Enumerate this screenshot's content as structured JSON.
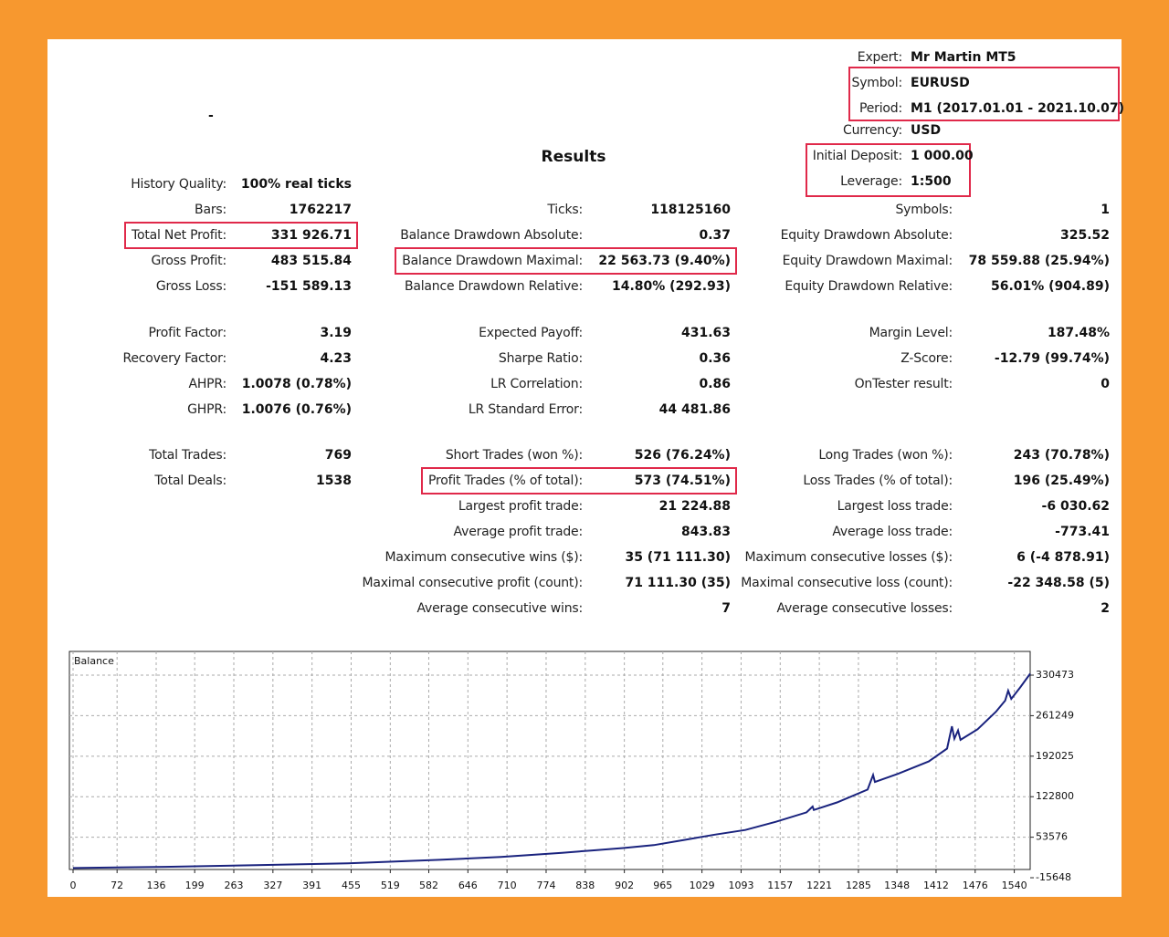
{
  "header": {
    "dash": "-",
    "rows": [
      {
        "label": "Expert:",
        "value": "Mr Martin MT5"
      },
      {
        "label": "Symbol:",
        "value": "EURUSD"
      },
      {
        "label": "Period:",
        "value": "M1 (2017.01.01 - 2021.10.07)"
      },
      {
        "label": "Currency:",
        "value": "USD"
      },
      {
        "label": "Initial Deposit:",
        "value": "1 000.00"
      },
      {
        "label": "Leverage:",
        "value": "1:500"
      }
    ]
  },
  "results": {
    "title": "Results",
    "groups": [
      [
        [
          {
            "label": "History Quality:",
            "value": "100% real ticks"
          },
          null,
          null
        ],
        [
          {
            "label": "Bars:",
            "value": "1762217"
          },
          {
            "label": "Ticks:",
            "value": "118125160"
          },
          {
            "label": "Symbols:",
            "value": "1"
          }
        ],
        [
          {
            "label": "Total Net Profit:",
            "value": "331 926.71",
            "highlight": true
          },
          {
            "label": "Balance Drawdown Absolute:",
            "value": "0.37"
          },
          {
            "label": "Equity Drawdown Absolute:",
            "value": "325.52"
          }
        ],
        [
          {
            "label": "Gross Profit:",
            "value": "483 515.84"
          },
          {
            "label": "Balance Drawdown Maximal:",
            "value": "22 563.73 (9.40%)",
            "highlight": true
          },
          {
            "label": "Equity Drawdown Maximal:",
            "value": "78 559.88 (25.94%)"
          }
        ],
        [
          {
            "label": "Gross Loss:",
            "value": "-151 589.13"
          },
          {
            "label": "Balance Drawdown Relative:",
            "value": "14.80% (292.93)"
          },
          {
            "label": "Equity Drawdown Relative:",
            "value": "56.01% (904.89)"
          }
        ]
      ],
      [
        [
          {
            "label": "Profit Factor:",
            "value": "3.19"
          },
          {
            "label": "Expected Payoff:",
            "value": "431.63"
          },
          {
            "label": "Margin Level:",
            "value": "187.48%"
          }
        ],
        [
          {
            "label": "Recovery Factor:",
            "value": "4.23"
          },
          {
            "label": "Sharpe Ratio:",
            "value": "0.36"
          },
          {
            "label": "Z-Score:",
            "value": "-12.79 (99.74%)"
          }
        ],
        [
          {
            "label": "AHPR:",
            "value": "1.0078 (0.78%)"
          },
          {
            "label": "LR Correlation:",
            "value": "0.86"
          },
          {
            "label": "OnTester result:",
            "value": "0"
          }
        ],
        [
          {
            "label": "GHPR:",
            "value": "1.0076 (0.76%)"
          },
          {
            "label": "LR Standard Error:",
            "value": "44 481.86"
          },
          null
        ]
      ],
      [
        [
          {
            "label": "Total Trades:",
            "value": "769"
          },
          {
            "label": "Short Trades (won %):",
            "value": "526 (76.24%)"
          },
          {
            "label": "Long Trades (won %):",
            "value": "243 (70.78%)"
          }
        ],
        [
          {
            "label": "Total Deals:",
            "value": "1538"
          },
          {
            "label": "Profit Trades (% of total):",
            "value": "573 (74.51%)",
            "highlight": true
          },
          {
            "label": "Loss Trades (% of total):",
            "value": "196 (25.49%)"
          }
        ],
        [
          null,
          {
            "label": "Largest profit trade:",
            "value": "21 224.88"
          },
          {
            "label": "Largest loss trade:",
            "value": "-6 030.62"
          }
        ],
        [
          null,
          {
            "label": "Average profit trade:",
            "value": "843.83"
          },
          {
            "label": "Average loss trade:",
            "value": "-773.41"
          }
        ],
        [
          null,
          {
            "label": "Maximum consecutive wins ($):",
            "value": "35 (71 111.30)"
          },
          {
            "label": "Maximum consecutive losses ($):",
            "value": "6 (-4 878.91)"
          }
        ],
        [
          null,
          {
            "label": "Maximal consecutive profit (count):",
            "value": "71 111.30 (35)"
          },
          {
            "label": "Maximal consecutive loss (count):",
            "value": "-22 348.58 (5)"
          }
        ],
        [
          null,
          {
            "label": "Average consecutive wins:",
            "value": "7"
          },
          {
            "label": "Average consecutive losses:",
            "value": "2"
          }
        ]
      ]
    ]
  },
  "chart_data": {
    "type": "line",
    "title": "Balance",
    "color": "#1a237e",
    "grid": true,
    "x": [
      0,
      150,
      300,
      450,
      600,
      700,
      800,
      850,
      900,
      950,
      1000,
      1050,
      1100,
      1150,
      1200,
      1210,
      1212,
      1250,
      1300,
      1309,
      1312,
      1350,
      1400,
      1430,
      1438,
      1442,
      1448,
      1452,
      1480,
      1510,
      1525,
      1530,
      1535,
      1550,
      1566
    ],
    "values": [
      1000,
      3000,
      6000,
      9000,
      15000,
      20000,
      27000,
      31000,
      35000,
      40000,
      49000,
      58000,
      66000,
      80000,
      96000,
      106000,
      100000,
      113000,
      135000,
      160000,
      148000,
      162000,
      183000,
      205000,
      243000,
      222000,
      236000,
      220000,
      238000,
      268000,
      287000,
      304000,
      290000,
      310000,
      332927
    ],
    "xlim": [
      0,
      1566
    ],
    "ylim": [
      0,
      371000
    ],
    "xticks": [
      0,
      72,
      136,
      199,
      263,
      327,
      391,
      455,
      519,
      582,
      646,
      710,
      774,
      838,
      902,
      965,
      1029,
      1093,
      1157,
      1221,
      1285,
      1348,
      1412,
      1476,
      1540
    ],
    "yticks": [
      330473,
      261249,
      192025,
      122800,
      53576,
      -15648
    ]
  }
}
